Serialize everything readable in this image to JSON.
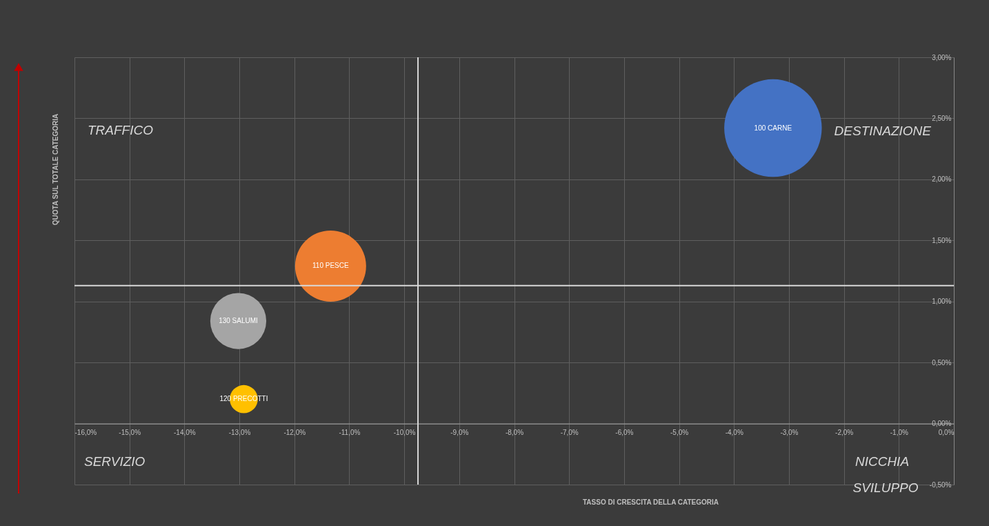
{
  "chart_data": {
    "type": "bubble",
    "xlabel": "TASSO DI CRESCITA DELLA CATEGORIA",
    "ylabel": "QUOTA SUL TOTALE CATEGORIA",
    "series": [
      {
        "name": "100 CARNE",
        "color": "#4472c4",
        "x": [
          -3.29
        ],
        "values": [
          2.42
        ],
        "sizes": [
          1
        ]
      },
      {
        "name": "110 PESCE",
        "color": "#ed7d31",
        "x": [
          -11.34
        ],
        "values": [
          1.29
        ],
        "sizes": [
          0.53
        ]
      },
      {
        "name": "130 SALUMI",
        "color": "#a5a5a5",
        "x": [
          -13.02
        ],
        "values": [
          0.84
        ],
        "sizes": [
          0.33
        ]
      },
      {
        "name": "120 PRECOTTI",
        "color": "#ffc000",
        "x": [
          -12.92
        ],
        "values": [
          0.2
        ],
        "sizes": [
          0.083
        ]
      }
    ],
    "xlim": [
      -16,
      0
    ],
    "xticks": [
      {
        "value": -16,
        "label": "-16,0%"
      },
      {
        "value": -15,
        "label": "-15,0%"
      },
      {
        "value": -14,
        "label": "-14,0%"
      },
      {
        "value": -13,
        "label": "-13,0%"
      },
      {
        "value": -12,
        "label": "-12,0%"
      },
      {
        "value": -11,
        "label": "-11,0%"
      },
      {
        "value": -10,
        "label": "-10,0%"
      },
      {
        "value": -9,
        "label": "-9,0%"
      },
      {
        "value": -8,
        "label": "-8,0%"
      },
      {
        "value": -7,
        "label": "-7,0%"
      },
      {
        "value": -6,
        "label": "-6,0%"
      },
      {
        "value": -5,
        "label": "-5,0%"
      },
      {
        "value": -4,
        "label": "-4,0%"
      },
      {
        "value": -3,
        "label": "-3,0%"
      },
      {
        "value": -2,
        "label": "-2,0%"
      },
      {
        "value": -1,
        "label": "-1,0%"
      },
      {
        "value": 0,
        "label": "0,0%"
      }
    ],
    "ylim": [
      -0.5,
      3
    ],
    "yticks": [
      {
        "value": -0.5,
        "label": "-0,50%"
      },
      {
        "value": 0,
        "label": "0,00%"
      },
      {
        "value": 0.5,
        "label": "0,50%"
      },
      {
        "value": 1,
        "label": "1,00%"
      },
      {
        "value": 1.5,
        "label": "1,50%"
      },
      {
        "value": 2,
        "label": "2,00%"
      },
      {
        "value": 2.5,
        "label": "2,50%"
      },
      {
        "value": 3,
        "label": "3,00%"
      }
    ],
    "ref_lines": [
      {
        "axis": "x",
        "value": -9.75,
        "color": "#d9d9d9"
      },
      {
        "axis": "y",
        "value": 1.13,
        "color": "#d9d9d9"
      }
    ],
    "annotations": [
      "TRAFFICO",
      "DESTINAZIONE",
      "SERVIZIO",
      "NICCHIA",
      "SVILUPPO"
    ],
    "grid": true,
    "legend": false
  }
}
